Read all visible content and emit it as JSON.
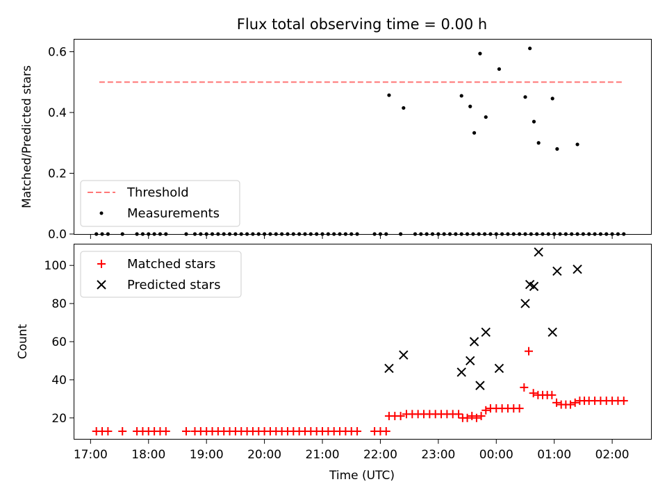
{
  "chart_data": [
    {
      "type": "scatter",
      "title": "Flux total observing time = 0.00 h",
      "xlabel": "",
      "ylabel": "Matched/Predicted stars",
      "ylim": [
        0,
        0.64
      ],
      "yticks": [
        0.0,
        0.2,
        0.4,
        0.6
      ],
      "ytick_labels": [
        "0.0",
        "0.2",
        "0.4",
        "0.6"
      ],
      "legend_position": "lower-left",
      "threshold": {
        "name": "Threshold",
        "value": 0.5,
        "x_range": [
          17.15,
          26.2
        ],
        "color": "#ff7777"
      },
      "series": [
        {
          "name": "Measurements",
          "color": "#000000",
          "x": [
            17.1,
            17.2,
            17.3,
            17.55,
            17.8,
            17.9,
            18.0,
            18.1,
            18.2,
            18.3,
            18.65,
            18.8,
            18.9,
            19.0,
            19.1,
            19.2,
            19.3,
            19.4,
            19.5,
            19.6,
            19.7,
            19.8,
            19.9,
            20.0,
            20.1,
            20.2,
            20.3,
            20.4,
            20.5,
            20.6,
            20.7,
            20.8,
            20.9,
            21.0,
            21.1,
            21.2,
            21.3,
            21.4,
            21.5,
            21.6,
            21.9,
            22.0,
            22.1,
            22.35,
            22.6,
            22.7,
            22.8,
            22.9,
            23.0,
            23.1,
            23.2,
            23.3,
            23.4,
            23.5,
            23.6,
            23.7,
            23.8,
            23.9,
            24.0,
            24.1,
            24.2,
            24.3,
            24.4,
            24.5,
            24.6,
            24.7,
            24.8,
            24.9,
            25.0,
            25.1,
            25.2,
            25.3,
            25.4,
            25.5,
            25.6,
            25.7,
            25.8,
            25.9,
            26.0,
            26.1,
            26.2,
            22.15,
            22.4,
            23.4,
            23.55,
            23.62,
            23.72,
            23.82,
            24.05,
            24.5,
            24.58,
            24.65,
            24.73,
            24.97,
            25.05,
            25.4
          ],
          "y": [
            0,
            0,
            0,
            0,
            0,
            0,
            0,
            0,
            0,
            0,
            0,
            0,
            0,
            0,
            0,
            0,
            0,
            0,
            0,
            0,
            0,
            0,
            0,
            0,
            0,
            0,
            0,
            0,
            0,
            0,
            0,
            0,
            0,
            0,
            0,
            0,
            0,
            0,
            0,
            0,
            0,
            0,
            0,
            0,
            0,
            0,
            0,
            0,
            0,
            0,
            0,
            0,
            0,
            0,
            0,
            0,
            0,
            0,
            0,
            0,
            0,
            0,
            0,
            0,
            0,
            0,
            0,
            0,
            0,
            0,
            0,
            0,
            0,
            0,
            0,
            0,
            0,
            0,
            0,
            0,
            0,
            0.457,
            0.415,
            0.455,
            0.42,
            0.333,
            0.594,
            0.385,
            0.543,
            0.451,
            0.611,
            0.37,
            0.3,
            0.446,
            0.28,
            0.295
          ]
        }
      ]
    },
    {
      "type": "scatter",
      "title": "",
      "xlabel": "Time (UTC)",
      "ylabel": "Count",
      "ylim": [
        9,
        111
      ],
      "yticks": [
        20,
        40,
        60,
        80,
        100
      ],
      "ytick_labels": [
        "20",
        "40",
        "60",
        "80",
        "100"
      ],
      "xticks": [
        17,
        18,
        19,
        20,
        21,
        22,
        23,
        24,
        25,
        26
      ],
      "xtick_labels": [
        "17:00",
        "18:00",
        "19:00",
        "20:00",
        "21:00",
        "22:00",
        "23:00",
        "00:00",
        "01:00",
        "02:00"
      ],
      "xlim": [
        16.72,
        26.67
      ],
      "legend_position": "upper-left",
      "series": [
        {
          "name": "Matched stars",
          "marker": "plus",
          "color": "#ff0000",
          "x": [
            17.1,
            17.2,
            17.3,
            17.55,
            17.8,
            17.9,
            18.0,
            18.1,
            18.2,
            18.3,
            18.65,
            18.8,
            18.9,
            19.0,
            19.1,
            19.2,
            19.3,
            19.4,
            19.5,
            19.6,
            19.7,
            19.8,
            19.9,
            20.0,
            20.1,
            20.2,
            20.3,
            20.4,
            20.5,
            20.6,
            20.7,
            20.8,
            20.9,
            21.0,
            21.1,
            21.2,
            21.3,
            21.4,
            21.5,
            21.6,
            21.9,
            22.0,
            22.1,
            22.15,
            22.25,
            22.35,
            22.45,
            22.55,
            22.65,
            22.75,
            22.85,
            22.95,
            23.05,
            23.15,
            23.25,
            23.35,
            23.42,
            23.5,
            23.58,
            23.66,
            23.74,
            23.82,
            23.9,
            24.0,
            24.1,
            24.2,
            24.3,
            24.4,
            24.48,
            24.56,
            24.64,
            24.72,
            24.8,
            24.88,
            24.96,
            25.04,
            25.12,
            25.2,
            25.28,
            25.36,
            25.44,
            25.52,
            25.6,
            25.7,
            25.8,
            25.9,
            26.0,
            26.1,
            26.2
          ],
          "y": [
            13,
            13,
            13,
            13,
            13,
            13,
            13,
            13,
            13,
            13,
            13,
            13,
            13,
            13,
            13,
            13,
            13,
            13,
            13,
            13,
            13,
            13,
            13,
            13,
            13,
            13,
            13,
            13,
            13,
            13,
            13,
            13,
            13,
            13,
            13,
            13,
            13,
            13,
            13,
            13,
            13,
            13,
            13,
            21,
            21,
            21,
            22,
            22,
            22,
            22,
            22,
            22,
            22,
            22,
            22,
            22,
            20,
            20,
            21,
            20,
            21,
            24,
            25,
            25,
            25,
            25,
            25,
            25,
            36,
            55,
            33,
            32,
            32,
            32,
            32,
            28,
            27,
            27,
            27,
            28,
            29,
            29,
            29,
            29,
            29,
            29,
            29,
            29,
            29
          ]
        },
        {
          "name": "Predicted stars",
          "marker": "x",
          "color": "#000000",
          "x": [
            22.15,
            22.4,
            23.4,
            23.55,
            23.62,
            23.72,
            23.82,
            24.05,
            24.5,
            24.58,
            24.65,
            24.73,
            24.97,
            25.05,
            25.4
          ],
          "y": [
            46,
            53,
            44,
            50,
            60,
            37,
            65,
            46,
            80,
            90,
            89,
            107,
            65,
            97,
            98
          ]
        }
      ]
    }
  ]
}
